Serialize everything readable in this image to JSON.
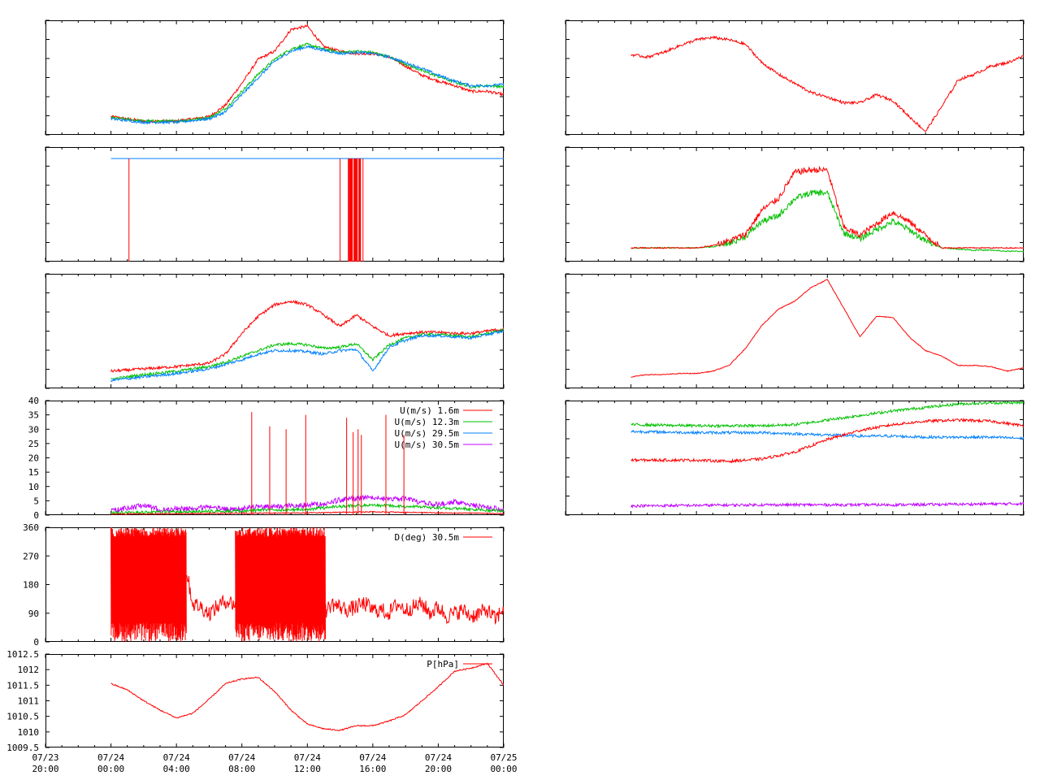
{
  "colors": {
    "red": "#ff0000",
    "green": "#00c000",
    "blue": "#0080ff",
    "purple": "#c000ff",
    "olive": "#808000"
  },
  "x_axis": {
    "range_hours": [
      -4,
      20
    ],
    "ticks": [
      {
        "hour": -4,
        "line1": "07/23",
        "line2": "20:00"
      },
      {
        "hour": 0,
        "line1": "07/24",
        "line2": "00:00"
      },
      {
        "hour": 4,
        "line1": "07/24",
        "line2": "04:00"
      },
      {
        "hour": 8,
        "line1": "07/24",
        "line2": "08:00"
      },
      {
        "hour": 12,
        "line1": "07/24",
        "line2": "12:00"
      },
      {
        "hour": 16,
        "line1": "07/24",
        "line2": "16:00"
      },
      {
        "hour": 20,
        "line1": "07/24",
        "line2": "20:00"
      },
      {
        "hour": 24,
        "line1": "07/25",
        "line2": "00:00"
      }
    ]
  },
  "chart_data": [
    {
      "id": "L1",
      "type": "line",
      "ylim": [
        0,
        10
      ],
      "series": [
        {
          "color": "#ff0000",
          "x": [
            0,
            2,
            4,
            6,
            7,
            8,
            9,
            10,
            11,
            12,
            13,
            14,
            15,
            16,
            17,
            18,
            19,
            20,
            21,
            22,
            23,
            24
          ],
          "values": [
            1.6,
            1.2,
            1.2,
            1.6,
            2.6,
            4.5,
            6.6,
            7.3,
            9.2,
            9.5,
            7.7,
            7.3,
            7.1,
            7.1,
            6.8,
            6.0,
            5.2,
            4.7,
            4.3,
            3.8,
            3.8,
            3.5
          ]
        },
        {
          "color": "#00c000",
          "x": [
            0,
            2,
            4,
            6,
            7,
            8,
            9,
            10,
            11,
            12,
            13,
            14,
            15,
            16,
            17,
            18,
            19,
            20,
            21,
            22,
            23,
            24
          ],
          "values": [
            1.5,
            1.2,
            1.2,
            1.5,
            2.3,
            3.8,
            5.3,
            6.6,
            7.5,
            7.9,
            7.5,
            7.2,
            7.3,
            7.2,
            6.8,
            6.2,
            5.6,
            5.1,
            4.6,
            4.2,
            4.3,
            4.2
          ]
        },
        {
          "color": "#0080ff",
          "x": [
            0,
            2,
            4,
            6,
            7,
            8,
            9,
            10,
            11,
            12,
            13,
            14,
            15,
            16,
            17,
            18,
            19,
            20,
            21,
            22,
            23,
            24
          ],
          "values": [
            1.4,
            1.1,
            1.1,
            1.4,
            2.0,
            3.5,
            5.0,
            6.4,
            7.3,
            7.7,
            7.4,
            7.1,
            7.2,
            7.1,
            6.8,
            6.3,
            5.8,
            5.2,
            4.7,
            4.3,
            4.3,
            4.4
          ]
        }
      ]
    },
    {
      "id": "L2",
      "type": "line",
      "ylim": [
        0,
        10
      ],
      "series": [
        {
          "color": "#0080ff",
          "x": [
            0,
            24
          ],
          "values": [
            9,
            9
          ]
        }
      ],
      "spikes": {
        "color": "#ff0000",
        "from": 9,
        "to": 0,
        "x": [
          1.1,
          14.0,
          14.5,
          14.6,
          14.7,
          14.9,
          15.0,
          15.2,
          15.4
        ]
      }
    },
    {
      "id": "L3",
      "type": "line",
      "ylim": [
        0,
        10
      ],
      "series": [
        {
          "color": "#ff0000",
          "x": [
            0,
            2,
            4,
            6,
            7,
            8,
            9,
            10,
            11,
            12,
            13,
            14,
            15,
            16,
            17,
            18,
            19,
            20,
            21,
            22,
            23,
            24
          ],
          "values": [
            1.5,
            1.7,
            1.9,
            2.2,
            3.0,
            4.8,
            6.3,
            7.3,
            7.6,
            7.3,
            6.4,
            5.4,
            6.4,
            5.4,
            4.6,
            4.8,
            4.9,
            4.9,
            4.8,
            4.8,
            5.0,
            5.2
          ]
        },
        {
          "color": "#00c000",
          "x": [
            0,
            2,
            4,
            6,
            7,
            8,
            9,
            10,
            11,
            12,
            13,
            14,
            15,
            16,
            17,
            18,
            19,
            20,
            21,
            22,
            23,
            24
          ],
          "values": [
            0.8,
            1.2,
            1.5,
            1.9,
            2.3,
            2.8,
            3.3,
            3.8,
            3.9,
            3.8,
            3.5,
            3.6,
            3.9,
            2.5,
            3.8,
            4.4,
            4.7,
            4.7,
            4.6,
            4.5,
            4.8,
            5.1
          ]
        },
        {
          "color": "#0080ff",
          "x": [
            0,
            2,
            4,
            6,
            7,
            8,
            9,
            10,
            11,
            12,
            13,
            14,
            15,
            16,
            17,
            18,
            19,
            20,
            21,
            22,
            23,
            24
          ],
          "values": [
            0.7,
            1.0,
            1.3,
            1.7,
            2.1,
            2.5,
            3.0,
            3.3,
            3.3,
            3.2,
            3.0,
            3.3,
            3.4,
            1.5,
            3.6,
            4.2,
            4.6,
            4.6,
            4.5,
            4.4,
            4.7,
            5.0
          ]
        }
      ]
    },
    {
      "id": "L4",
      "type": "line",
      "ylim": [
        0,
        40
      ],
      "yticks": [
        "0",
        "5",
        "10",
        "15",
        "20",
        "25",
        "30",
        "35",
        "40"
      ],
      "legend": {
        "placement": "top-right",
        "entries": [
          {
            "label": "U(m/s)  1.6m",
            "color": "#ff0000"
          },
          {
            "label": "U(m/s) 12.3m",
            "color": "#00c000"
          },
          {
            "label": "U(m/s) 29.5m",
            "color": "#0080ff"
          },
          {
            "label": "U(m/s) 30.5m",
            "color": "#c000ff"
          }
        ]
      },
      "series": [
        {
          "color": "#c000ff",
          "x": [
            0,
            1,
            2,
            3,
            4,
            5,
            6,
            7,
            8,
            9,
            10,
            11,
            12,
            13,
            14,
            15,
            16,
            17,
            18,
            19,
            20,
            21,
            22,
            23,
            24
          ],
          "values": [
            0.5,
            1.5,
            2.5,
            1.0,
            1.2,
            1.5,
            1.8,
            1.2,
            1.5,
            1.9,
            2.1,
            2.4,
            2.6,
            3.0,
            4.4,
            5.0,
            5.3,
            4.5,
            4.8,
            3.4,
            2.9,
            3.6,
            2.6,
            1.6,
            1.1
          ]
        },
        {
          "color": "#00c000",
          "x": [
            0,
            4,
            8,
            12,
            14,
            16,
            18,
            20,
            22,
            24
          ],
          "values": [
            0.3,
            0.6,
            1.0,
            1.5,
            2.5,
            3.0,
            2.5,
            2.0,
            1.5,
            0.8
          ]
        },
        {
          "color": "#ff0000",
          "x": [
            0,
            4,
            8,
            12,
            14,
            16,
            18,
            20,
            22,
            24
          ],
          "values": [
            0.2,
            0.3,
            0.5,
            0.6,
            0.8,
            1.0,
            0.8,
            0.6,
            0.5,
            0.3
          ]
        }
      ],
      "spikes": {
        "color": "#ff0000",
        "from": 0,
        "to": 36,
        "x": [
          8.6,
          9.7,
          10.7,
          11.9,
          14.4,
          14.8,
          15.1,
          15.3,
          16.8,
          17.9
        ],
        "tops": [
          36,
          31,
          30,
          35,
          34,
          29,
          30,
          28,
          35,
          28
        ]
      }
    },
    {
      "id": "L5",
      "type": "line",
      "ylim": [
        0,
        360
      ],
      "yticks": [
        "0",
        "90",
        "180",
        "270",
        "360"
      ],
      "legend": {
        "placement": "top-right",
        "entries": [
          {
            "label": "D(deg)  30.5m",
            "color": "#ff0000"
          }
        ]
      },
      "series": [
        {
          "color": "#ff0000",
          "x": [
            0,
            0.5,
            1,
            1.5,
            2,
            2.5,
            3,
            3.5,
            4,
            4.5,
            5,
            5.5,
            6,
            6.5,
            7,
            7.5,
            8,
            8.5,
            9,
            9.5,
            10,
            10.5,
            11,
            11.5,
            12,
            12.5,
            13,
            13.5,
            14,
            14.5,
            15,
            15.5,
            16,
            16.5,
            17,
            17.5,
            18,
            18.5,
            19,
            19.5,
            20,
            20.5,
            21,
            21.5,
            22,
            22.5,
            23,
            23.5,
            24
          ],
          "values": [
            300,
            310,
            290,
            320,
            310,
            300,
            320,
            280,
            300,
            250,
            120,
            110,
            90,
            110,
            130,
            120,
            100,
            80,
            100,
            90,
            110,
            80,
            100,
            90,
            110,
            100,
            90,
            120,
            110,
            100,
            110,
            120,
            100,
            100,
            90,
            120,
            100,
            110,
            120,
            90,
            110,
            80,
            90,
            100,
            80,
            90,
            100,
            70,
            110
          ]
        }
      ],
      "bursts": {
        "color": "#ff0000",
        "ranges": [
          [
            0,
            4.6
          ],
          [
            7.6,
            13.1
          ]
        ]
      }
    },
    {
      "id": "L6",
      "type": "line",
      "ylim": [
        1009.5,
        1012.5
      ],
      "yticks": [
        "1009.5",
        "1010",
        "1010.5",
        "1011",
        "1011.5",
        "1012",
        "1012.5"
      ],
      "legend": {
        "placement": "top-right",
        "entries": [
          {
            "label": "P[hPa]",
            "color": "#ff0000"
          }
        ]
      },
      "series": [
        {
          "color": "#ff0000",
          "x": [
            0,
            1,
            2,
            3,
            4,
            5,
            6,
            7,
            8,
            9,
            10,
            11,
            12,
            13,
            14,
            15,
            16,
            17,
            18,
            19,
            20,
            21,
            22,
            23,
            24
          ],
          "values": [
            1011.55,
            1011.35,
            1011.0,
            1010.7,
            1010.45,
            1010.6,
            1011.05,
            1011.55,
            1011.7,
            1011.75,
            1011.3,
            1010.7,
            1010.25,
            1010.1,
            1010.05,
            1010.2,
            1010.2,
            1010.35,
            1010.55,
            1011.0,
            1011.45,
            1011.95,
            1012.05,
            1012.2,
            1011.5
          ]
        }
      ]
    },
    {
      "id": "R1",
      "type": "line",
      "ylim": [
        0,
        10
      ],
      "series": [
        {
          "color": "#ff0000",
          "x": [
            0,
            1,
            2,
            3,
            4,
            5,
            6,
            7,
            8,
            9,
            10,
            11,
            12,
            13,
            14,
            15,
            16,
            17,
            18,
            19,
            20,
            21,
            22,
            23,
            24
          ],
          "values": [
            7.0,
            6.8,
            7.2,
            7.8,
            8.3,
            8.5,
            8.3,
            7.9,
            6.3,
            5.3,
            4.5,
            3.7,
            3.3,
            2.8,
            2.8,
            3.5,
            3.0,
            1.6,
            0.3,
            2.5,
            4.8,
            5.3,
            6.0,
            6.3,
            6.9
          ]
        }
      ]
    },
    {
      "id": "R2",
      "type": "line",
      "ylim": [
        0,
        10
      ],
      "series": [
        {
          "color": "#00c000",
          "x": [
            0,
            4,
            5,
            6,
            7,
            8,
            9,
            10,
            11,
            12,
            13,
            14,
            15,
            16,
            17,
            18,
            19,
            20,
            21,
            22,
            23,
            24
          ],
          "values": [
            1.2,
            1.2,
            1.3,
            1.6,
            2.2,
            3.5,
            4.0,
            5.5,
            6.0,
            6.0,
            2.5,
            2.0,
            2.8,
            3.5,
            2.8,
            1.8,
            1.2,
            1.1,
            1.0,
            1.0,
            0.9,
            0.9
          ]
        },
        {
          "color": "#ff0000",
          "x": [
            0,
            4,
            5,
            6,
            7,
            8,
            9,
            10,
            11,
            12,
            13,
            14,
            15,
            16,
            17,
            18,
            19,
            20,
            21,
            22,
            23,
            24
          ],
          "values": [
            1.2,
            1.2,
            1.4,
            1.8,
            2.4,
            4.5,
            5.5,
            7.8,
            8.0,
            8.0,
            3.0,
            2.3,
            3.3,
            4.3,
            3.5,
            2.3,
            1.2,
            1.2,
            1.2,
            1.2,
            1.2,
            1.2
          ]
        }
      ]
    },
    {
      "id": "R3",
      "type": "line",
      "ylim": [
        0,
        10
      ],
      "series": [
        {
          "color": "#ff0000",
          "x": [
            0,
            1,
            2,
            3,
            4,
            5,
            6,
            7,
            8,
            9,
            10,
            11,
            12,
            13,
            14,
            15,
            16,
            17,
            18,
            19,
            20,
            21,
            22,
            23,
            24
          ],
          "values": [
            1.0,
            1.2,
            1.2,
            1.3,
            1.3,
            1.5,
            2.0,
            3.5,
            5.5,
            6.9,
            7.6,
            8.8,
            9.5,
            7.0,
            4.5,
            6.3,
            6.2,
            4.5,
            3.3,
            2.8,
            2.0,
            2.0,
            1.9,
            1.5,
            1.8
          ]
        }
      ]
    },
    {
      "id": "R4",
      "type": "line",
      "ylim": [
        0,
        10
      ],
      "series": [
        {
          "color": "#00c000",
          "x": [
            0,
            4,
            8,
            10,
            12,
            14,
            16,
            18,
            20,
            22,
            24
          ],
          "values": [
            7.9,
            7.8,
            7.8,
            7.9,
            8.3,
            8.7,
            9.1,
            9.4,
            9.7,
            9.8,
            9.8
          ]
        },
        {
          "color": "#0080ff",
          "x": [
            0,
            4,
            8,
            10,
            12,
            14,
            16,
            18,
            20,
            22,
            24
          ],
          "values": [
            7.3,
            7.2,
            7.2,
            7.1,
            7.0,
            6.9,
            6.9,
            6.8,
            6.8,
            6.8,
            6.7
          ]
        },
        {
          "color": "#ff0000",
          "x": [
            0,
            4,
            6,
            8,
            10,
            12,
            14,
            16,
            18,
            20,
            22,
            24
          ],
          "values": [
            4.8,
            4.8,
            4.7,
            4.9,
            5.5,
            6.6,
            7.4,
            7.9,
            8.2,
            8.3,
            8.2,
            7.8
          ]
        },
        {
          "color": "#c000ff",
          "x": [
            0,
            4,
            8,
            12,
            16,
            20,
            24
          ],
          "values": [
            0.8,
            0.85,
            0.9,
            0.9,
            0.9,
            0.95,
            1.0
          ]
        }
      ]
    }
  ]
}
